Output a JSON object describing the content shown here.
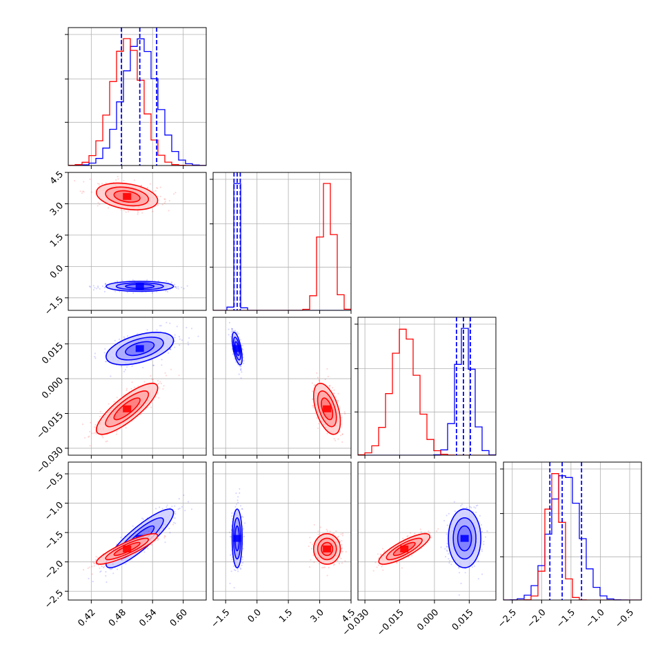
{
  "chart_data": {
    "type": "corner",
    "grid": true,
    "parameters": [
      {
        "ticks": [
          0.42,
          0.48,
          0.54,
          0.6
        ],
        "tick_labels": [
          "0.42",
          "0.48",
          "0.54",
          "0.60"
        ],
        "range": [
          0.375,
          0.645
        ]
      },
      {
        "ticks": [
          -1.5,
          0.0,
          1.5,
          3.0,
          4.5
        ],
        "tick_labels": [
          "−1.5",
          "0.0",
          "1.5",
          "3.0",
          "4.5"
        ],
        "range": [
          -2.1,
          4.5
        ]
      },
      {
        "ticks": [
          -0.03,
          -0.015,
          0.0,
          0.015
        ],
        "tick_labels": [
          "−0.030",
          "−0.015",
          "0.000",
          "0.015"
        ],
        "range": [
          -0.033,
          0.0265
        ]
      },
      {
        "ticks": [
          -2.5,
          -2.0,
          -1.5,
          -1.0,
          -0.5
        ],
        "tick_labels": [
          "−2.5",
          "−2.0",
          "−1.5",
          "−1.0",
          "−0.5"
        ],
        "range": [
          -2.65,
          -0.3
        ]
      }
    ],
    "series": [
      {
        "color": "#0000ff",
        "means": [
          0.515,
          -0.95,
          0.013,
          -1.6
        ],
        "stds": [
          0.033,
          0.12,
          0.0035,
          0.25
        ],
        "correlations": {
          "1-0": 0.0,
          "2-0": 0.5,
          "2-1": -0.6,
          "3-0": 0.88,
          "3-1": 0.0,
          "3-2": 0.0
        },
        "quantiles": [
          [
            0.479,
            0.515,
            0.548
          ],
          [
            -1.1,
            -0.95,
            -0.8
          ],
          [
            0.0095,
            0.0125,
            0.0155
          ],
          [
            -1.86,
            -1.65,
            -1.32
          ]
        ]
      },
      {
        "color": "#ff0000",
        "means": [
          0.49,
          3.35,
          -0.013,
          -1.78
        ],
        "stds": [
          0.03,
          0.32,
          0.0055,
          0.13
        ],
        "correlations": {
          "1-0": -0.3,
          "2-0": 0.82,
          "2-1": -0.5,
          "3-0": 0.88,
          "3-1": 0.0,
          "3-2": 0.82
        }
      }
    ]
  }
}
